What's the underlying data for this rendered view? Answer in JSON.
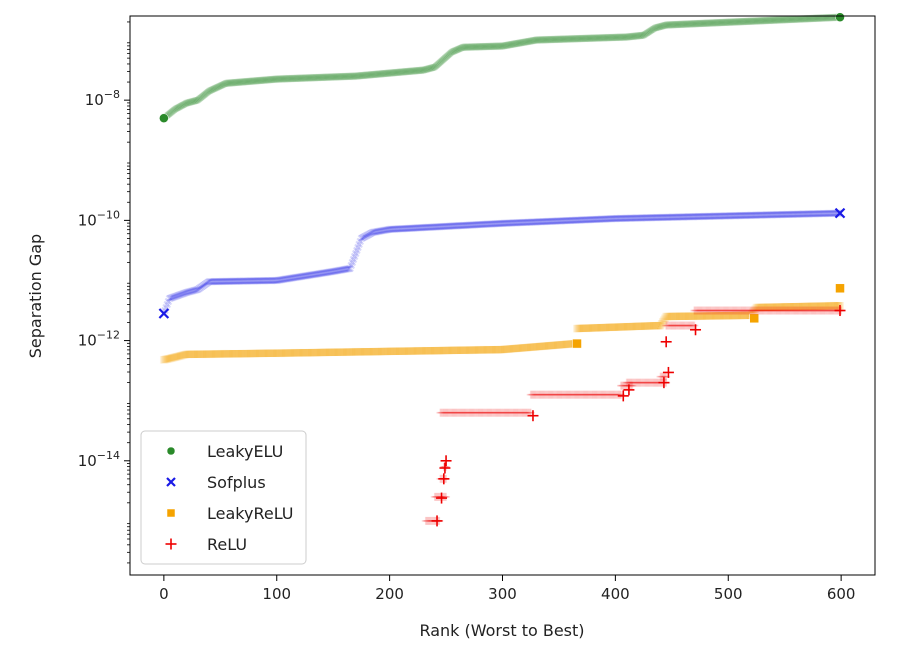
{
  "chart_data": {
    "type": "scatter",
    "xlabel": "Rank (Worst to Best)",
    "ylabel": "Separation Gap",
    "xlim": [
      -30,
      630
    ],
    "ylog": true,
    "ylim_exp": [
      -15.9,
      -6.6
    ],
    "x_ticks": [
      0,
      100,
      200,
      300,
      400,
      500,
      600
    ],
    "y_ticks": [
      {
        "exp": -8,
        "base": "10",
        "sup": "−8"
      },
      {
        "exp": -10,
        "base": "10",
        "sup": "−10"
      },
      {
        "exp": -12,
        "base": "10",
        "sup": "−12"
      },
      {
        "exp": -14,
        "base": "10",
        "sup": "−14"
      }
    ],
    "grid": false,
    "legend_position": "lower-left",
    "series": [
      {
        "name": "LeakyELU",
        "color": "#2a8a2a",
        "marker": "circle",
        "log10_curve": [
          [
            0,
            -8.3
          ],
          [
            10,
            -8.15
          ],
          [
            20,
            -8.05
          ],
          [
            30,
            -8.0
          ],
          [
            40,
            -7.85
          ],
          [
            55,
            -7.72
          ],
          [
            100,
            -7.65
          ],
          [
            170,
            -7.6
          ],
          [
            230,
            -7.5
          ],
          [
            240,
            -7.45
          ],
          [
            255,
            -7.2
          ],
          [
            265,
            -7.12
          ],
          [
            300,
            -7.1
          ],
          [
            330,
            -7.0
          ],
          [
            410,
            -6.95
          ],
          [
            425,
            -6.92
          ],
          [
            435,
            -6.8
          ],
          [
            445,
            -6.75
          ],
          [
            600,
            -6.62
          ]
        ],
        "highlight": [
          [
            0,
            -8.3
          ],
          [
            599,
            -6.62
          ]
        ]
      },
      {
        "name": "Sofplus",
        "color": "#1a1ae6",
        "marker": "x",
        "log10_curve": [
          [
            0,
            -11.55
          ],
          [
            5,
            -11.3
          ],
          [
            20,
            -11.2
          ],
          [
            30,
            -11.15
          ],
          [
            40,
            -11.02
          ],
          [
            100,
            -11.0
          ],
          [
            150,
            -10.85
          ],
          [
            165,
            -10.8
          ],
          [
            170,
            -10.55
          ],
          [
            175,
            -10.3
          ],
          [
            185,
            -10.2
          ],
          [
            200,
            -10.15
          ],
          [
            300,
            -10.05
          ],
          [
            400,
            -9.97
          ],
          [
            600,
            -9.88
          ]
        ],
        "highlight": [
          [
            0,
            -11.55
          ],
          [
            599,
            -9.88
          ]
        ]
      },
      {
        "name": "LeakyReLU",
        "color": "#f5a300",
        "marker": "square",
        "log10_curve": [
          [
            0,
            -12.32
          ],
          [
            5,
            -12.3
          ],
          [
            20,
            -12.23
          ],
          [
            100,
            -12.21
          ],
          [
            200,
            -12.18
          ],
          [
            300,
            -12.15
          ],
          [
            365,
            -12.05
          ],
          [
            366,
            -11.8
          ],
          [
            440,
            -11.75
          ],
          [
            445,
            -11.6
          ],
          [
            520,
            -11.58
          ],
          [
            525,
            -11.45
          ],
          [
            600,
            -11.42
          ]
        ],
        "highlight": [
          [
            366,
            -12.05
          ],
          [
            523,
            -11.63
          ],
          [
            599,
            -11.13
          ]
        ]
      },
      {
        "name": "ReLU",
        "color": "#ee0000",
        "marker": "plus",
        "segments": [
          [
            [
              232,
              -15.0
            ],
            [
              244,
              -15.0
            ]
          ],
          [
            [
              240,
              -14.6
            ],
            [
              250,
              -14.6
            ]
          ],
          [
            [
              245,
              -14.3
            ],
            [
              250,
              -14.3
            ]
          ],
          [
            [
              248,
              -14.1
            ],
            [
              250,
              -14.1
            ]
          ],
          [
            [
              245,
              -13.2
            ],
            [
              325,
              -13.2
            ]
          ],
          [
            [
              325,
              -12.9
            ],
            [
              405,
              -12.9
            ]
          ],
          [
            [
              405,
              -12.75
            ],
            [
              415,
              -12.75
            ]
          ],
          [
            [
              410,
              -12.7
            ],
            [
              445,
              -12.7
            ]
          ],
          [
            [
              440,
              -12.6
            ],
            [
              445,
              -12.6
            ]
          ],
          [
            [
              445,
              -11.75
            ],
            [
              470,
              -11.75
            ]
          ],
          [
            [
              470,
              -11.5
            ],
            [
              600,
              -11.5
            ]
          ]
        ],
        "highlight": [
          [
            242,
            -15.0
          ],
          [
            246,
            -14.62
          ],
          [
            248,
            -14.3
          ],
          [
            249,
            -14.12
          ],
          [
            250,
            -14.0
          ],
          [
            327,
            -13.25
          ],
          [
            407,
            -12.92
          ],
          [
            412,
            -12.82
          ],
          [
            443,
            -12.7
          ],
          [
            447,
            -12.53
          ],
          [
            445,
            -12.02
          ],
          [
            471,
            -11.82
          ],
          [
            599,
            -11.5
          ]
        ]
      }
    ]
  }
}
